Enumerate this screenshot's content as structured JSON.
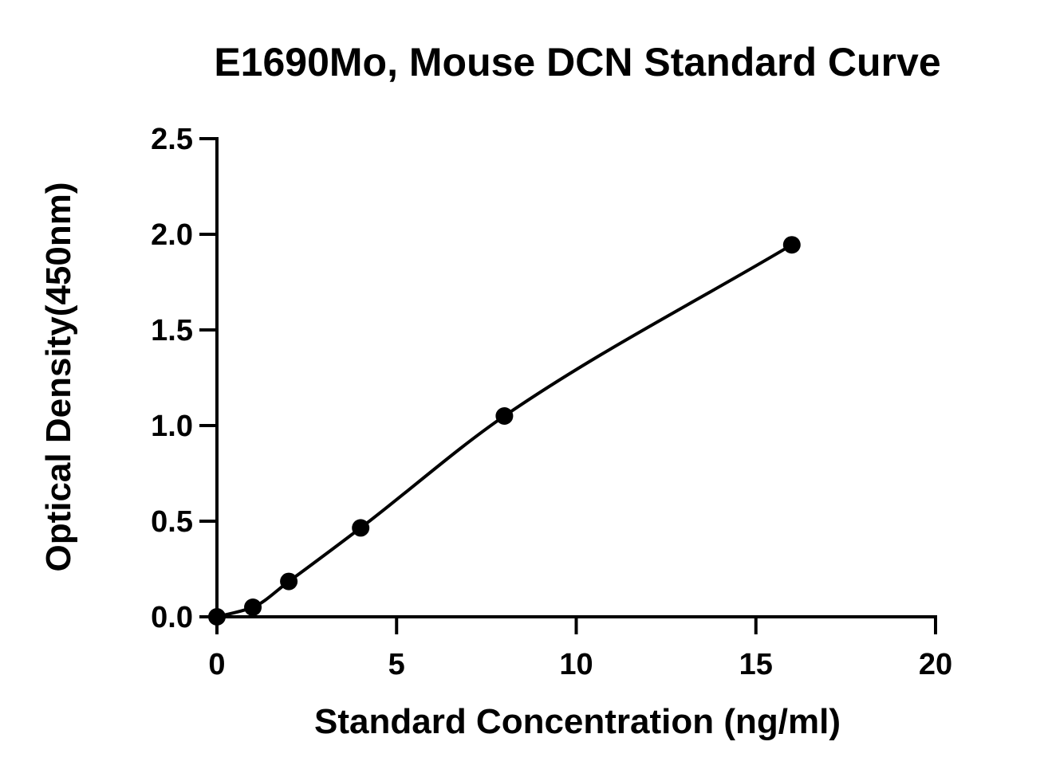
{
  "chart_data": {
    "type": "scatter",
    "title": "E1690Mo, Mouse DCN Standard Curve",
    "xlabel": "Standard Concentration (ng/ml)",
    "ylabel": "Optical Density(450nm)",
    "xlim": [
      0,
      20
    ],
    "ylim": [
      0,
      2.5
    ],
    "x_ticks": [
      0,
      5,
      10,
      15,
      20
    ],
    "x_tick_labels": [
      "0",
      "5",
      "10",
      "15",
      "20"
    ],
    "y_ticks": [
      0,
      0.5,
      1.0,
      1.5,
      2.0,
      2.5
    ],
    "y_tick_labels": [
      "0.0",
      "0.5",
      "1.0",
      "1.5",
      "2.0",
      "2.5"
    ],
    "grid": false,
    "legend": "none",
    "series": [
      {
        "x": [
          0,
          1,
          2,
          4,
          8,
          16
        ],
        "y": [
          0.0,
          0.05,
          0.185,
          0.465,
          1.05,
          1.945
        ],
        "color": "#000000",
        "marker": "circle",
        "fit": "smooth-curve"
      }
    ]
  }
}
